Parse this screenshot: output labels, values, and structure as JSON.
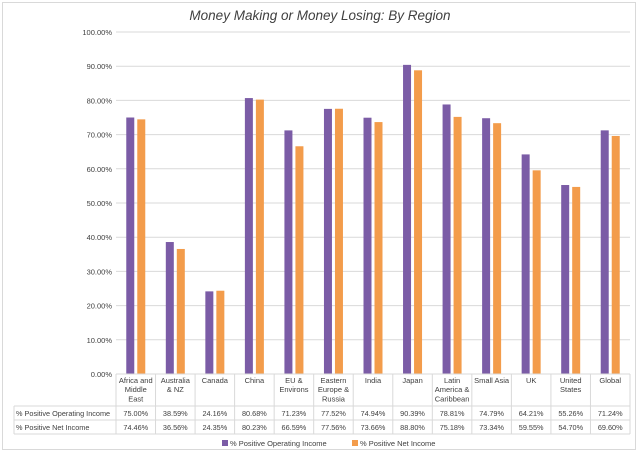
{
  "chart_data": {
    "type": "bar",
    "title": "Money Making or Money Losing: By Region",
    "categories": [
      [
        "Africa and",
        "Middle",
        "East"
      ],
      [
        "Australia",
        "& NZ"
      ],
      [
        "Canada"
      ],
      [
        "China"
      ],
      [
        "EU &",
        "Environs"
      ],
      [
        "Eastern",
        "Europe &",
        "Russia"
      ],
      [
        "India"
      ],
      [
        "Japan"
      ],
      [
        "Latin",
        "America &",
        "Caribbean"
      ],
      [
        "Small Asia"
      ],
      [
        "UK"
      ],
      [
        "United",
        "States"
      ],
      [
        "Global"
      ]
    ],
    "series": [
      {
        "name": "% Positive Operating Income",
        "color": "#7b5ca6",
        "values": [
          75.0,
          38.59,
          24.16,
          80.68,
          71.23,
          77.52,
          74.94,
          90.39,
          78.81,
          74.79,
          64.21,
          55.26,
          71.24
        ],
        "labels": [
          "75.00%",
          "38.59%",
          "24.16%",
          "80.68%",
          "71.23%",
          "77.52%",
          "74.94%",
          "90.39%",
          "78.81%",
          "74.79%",
          "64.21%",
          "55.26%",
          "71.24%"
        ]
      },
      {
        "name": "% Positive Net Income",
        "color": "#f39c4b",
        "values": [
          74.46,
          36.56,
          24.35,
          80.23,
          66.59,
          77.56,
          73.66,
          88.8,
          75.18,
          73.34,
          59.55,
          54.7,
          69.6
        ],
        "labels": [
          "74.46%",
          "36.56%",
          "24.35%",
          "80.23%",
          "66.59%",
          "77.56%",
          "73.66%",
          "88.80%",
          "75.18%",
          "73.34%",
          "59.55%",
          "54.70%",
          "69.60%"
        ]
      }
    ],
    "ylim": [
      0,
      100
    ],
    "yticks": [
      "0.00%",
      "10.00%",
      "20.00%",
      "30.00%",
      "40.00%",
      "50.00%",
      "60.00%",
      "70.00%",
      "80.00%",
      "90.00%",
      "100.00%"
    ],
    "grid": true,
    "legend": "bottom",
    "data_table": true,
    "colors": {
      "grid": "#d9d9d9",
      "text": "#404040",
      "title": "#404040"
    }
  }
}
